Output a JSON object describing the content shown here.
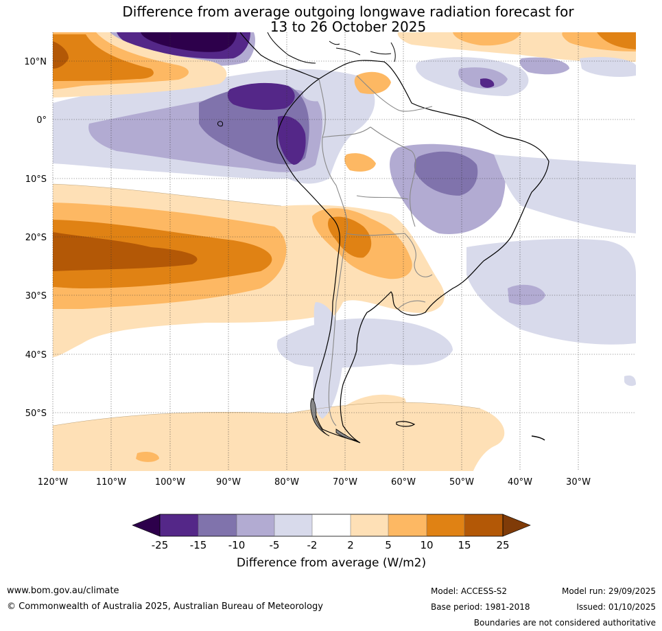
{
  "title": {
    "line1": "Difference from average outgoing longwave radiation forecast for",
    "line2": "13 to 26 October 2025"
  },
  "axes": {
    "lat_labels": [
      "10°N",
      "0°",
      "10°S",
      "20°S",
      "30°S",
      "40°S",
      "50°S"
    ],
    "lon_labels": [
      "120°W",
      "110°W",
      "100°W",
      "90°W",
      "80°W",
      "70°W",
      "60°W",
      "50°W",
      "40°W",
      "30°W"
    ]
  },
  "legend": {
    "ticks": [
      "-25",
      "-15",
      "-10",
      "-5",
      "-2",
      "2",
      "5",
      "10",
      "15",
      "25"
    ],
    "label": "Difference from average (W/m2)",
    "colors": [
      "#2d004b",
      "#542788",
      "#8073ac",
      "#b2abd2",
      "#d8daeb",
      "#ffffff",
      "#fee0b6",
      "#fdb863",
      "#e08214",
      "#b35806",
      "#7f3b08"
    ]
  },
  "footer": {
    "website": "www.bom.gov.au/climate",
    "copyright": "© Commonwealth of Australia 2025, Australian Bureau of Meteorology",
    "model": "Model: ACCESS-S2",
    "base_period": "Base period: 1981-2018",
    "model_run": "Model run: 29/09/2025",
    "issued": "Issued: 01/10/2025",
    "disclaimer": "Boundaries are not considered authoritative"
  }
}
